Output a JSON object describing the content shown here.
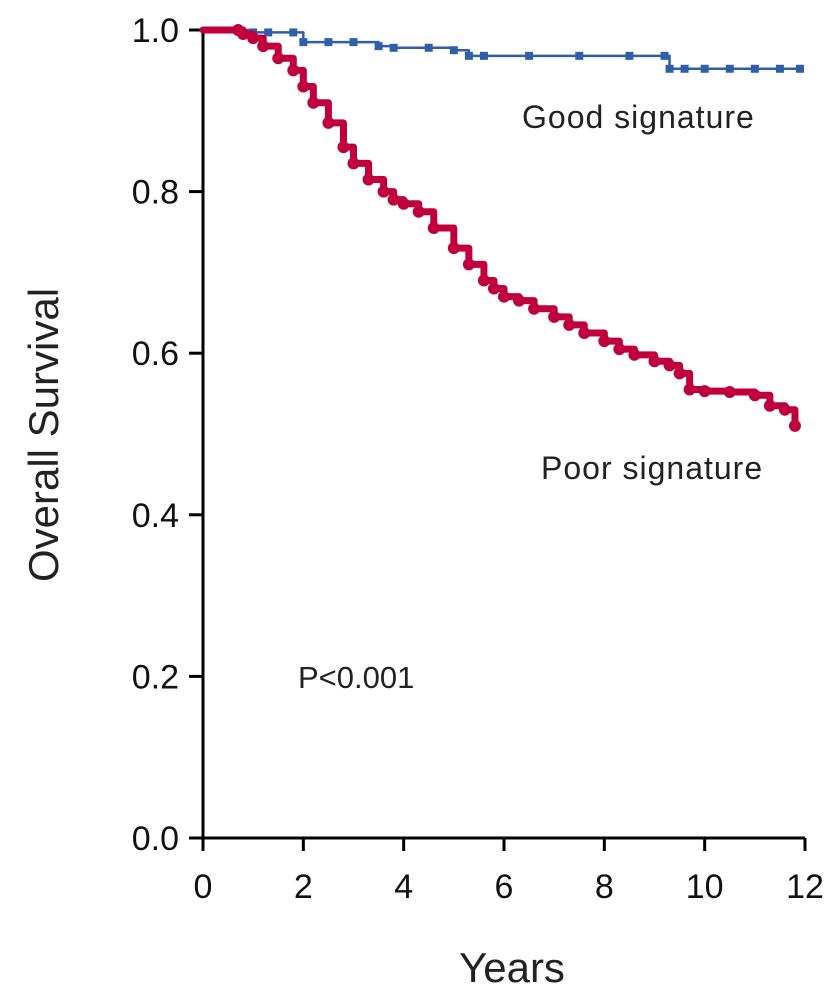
{
  "chart_data": {
    "type": "line",
    "xlabel": "Years",
    "ylabel": "Overall Survival",
    "xlim": [
      0,
      12
    ],
    "ylim": [
      0.0,
      1.0
    ],
    "xticks": [
      "0",
      "2",
      "4",
      "6",
      "8",
      "10",
      "12"
    ],
    "yticks": [
      "0.0",
      "0.2",
      "0.4",
      "0.6",
      "0.8",
      "1.0"
    ],
    "xtick_values": [
      0,
      2,
      4,
      6,
      8,
      10,
      12
    ],
    "ytick_values": [
      0.0,
      0.2,
      0.4,
      0.6,
      0.8,
      1.0
    ],
    "grid": false,
    "step": true,
    "annotations": {
      "p_value": "P<0.001"
    },
    "series": [
      {
        "name": "Good signature",
        "color": "#2f5fa8",
        "x": [
          0,
          0.7,
          1.0,
          1.3,
          1.8,
          2.0,
          2.5,
          3.0,
          3.5,
          3.8,
          4.5,
          5.0,
          5.3,
          5.6,
          6.5,
          7.5,
          8.5,
          9.2,
          9.3,
          9.6,
          10.0,
          10.5,
          11.0,
          11.5,
          11.9
        ],
        "y": [
          1.0,
          1.0,
          0.997,
          0.997,
          0.997,
          0.985,
          0.985,
          0.985,
          0.98,
          0.978,
          0.978,
          0.975,
          0.968,
          0.968,
          0.968,
          0.968,
          0.968,
          0.968,
          0.952,
          0.952,
          0.952,
          0.952,
          0.952,
          0.952,
          0.952
        ]
      },
      {
        "name": "Poor signature",
        "color": "#c0003c",
        "x": [
          0,
          0.7,
          0.8,
          1.0,
          1.2,
          1.5,
          1.8,
          2.0,
          2.2,
          2.5,
          2.8,
          3.0,
          3.3,
          3.6,
          3.8,
          4.0,
          4.3,
          4.6,
          5.0,
          5.3,
          5.6,
          5.8,
          6.0,
          6.3,
          6.6,
          7.0,
          7.3,
          7.6,
          8.0,
          8.3,
          8.6,
          9.0,
          9.3,
          9.5,
          9.7,
          10.0,
          10.5,
          11.0,
          11.3,
          11.6,
          11.8
        ],
        "y": [
          1.0,
          1.0,
          0.995,
          0.99,
          0.98,
          0.965,
          0.95,
          0.93,
          0.91,
          0.885,
          0.855,
          0.835,
          0.815,
          0.8,
          0.79,
          0.785,
          0.775,
          0.755,
          0.73,
          0.71,
          0.69,
          0.68,
          0.67,
          0.665,
          0.655,
          0.645,
          0.635,
          0.625,
          0.615,
          0.605,
          0.598,
          0.59,
          0.585,
          0.575,
          0.555,
          0.553,
          0.552,
          0.548,
          0.535,
          0.53,
          0.51
        ]
      }
    ]
  }
}
